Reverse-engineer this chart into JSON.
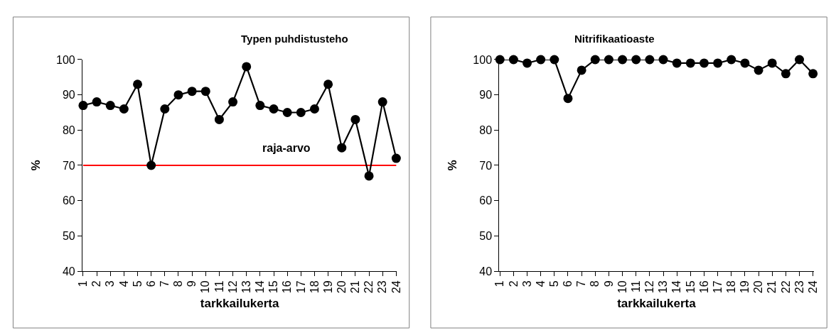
{
  "chart_data": [
    {
      "type": "line",
      "title": "Typen puhdistusteho",
      "xlabel": "tarkkailukerta",
      "ylabel": "%",
      "categories": [
        "1",
        "2",
        "3",
        "4",
        "5",
        "6",
        "7",
        "8",
        "9",
        "10",
        "11",
        "12",
        "13",
        "14",
        "15",
        "16",
        "17",
        "18",
        "19",
        "20",
        "21",
        "22",
        "23",
        "24"
      ],
      "series": [
        {
          "color": "#000000",
          "values": [
            87,
            88,
            87,
            86,
            93,
            70,
            86,
            90,
            91,
            91,
            83,
            88,
            98,
            87,
            86,
            85,
            85,
            86,
            93,
            75,
            83,
            67,
            88,
            72
          ]
        }
      ],
      "ylim": [
        40,
        100
      ],
      "yticks": [
        40,
        50,
        60,
        70,
        80,
        90,
        100
      ],
      "marker": "circle",
      "line_style": "solid",
      "grid": false,
      "ref_lines": [
        {
          "axis": "y",
          "value": 70,
          "label": "raja-arvo",
          "color": "#ff0000"
        }
      ]
    },
    {
      "type": "line",
      "title": "Nitrifikaatioaste",
      "xlabel": "tarkkailukerta",
      "ylabel": "%",
      "categories": [
        "1",
        "2",
        "3",
        "4",
        "5",
        "6",
        "7",
        "8",
        "9",
        "10",
        "11",
        "12",
        "13",
        "14",
        "15",
        "16",
        "17",
        "18",
        "19",
        "20",
        "21",
        "22",
        "23",
        "24"
      ],
      "series": [
        {
          "color": "#000000",
          "values": [
            100,
            100,
            99,
            100,
            100,
            89,
            97,
            100,
            100,
            100,
            100,
            100,
            100,
            99,
            99,
            99,
            99,
            100,
            99,
            97,
            99,
            96,
            100,
            96
          ]
        }
      ],
      "ylim": [
        40,
        100
      ],
      "yticks": [
        40,
        50,
        60,
        70,
        80,
        90,
        100
      ],
      "marker": "circle",
      "line_style": "solid",
      "grid": false
    }
  ]
}
